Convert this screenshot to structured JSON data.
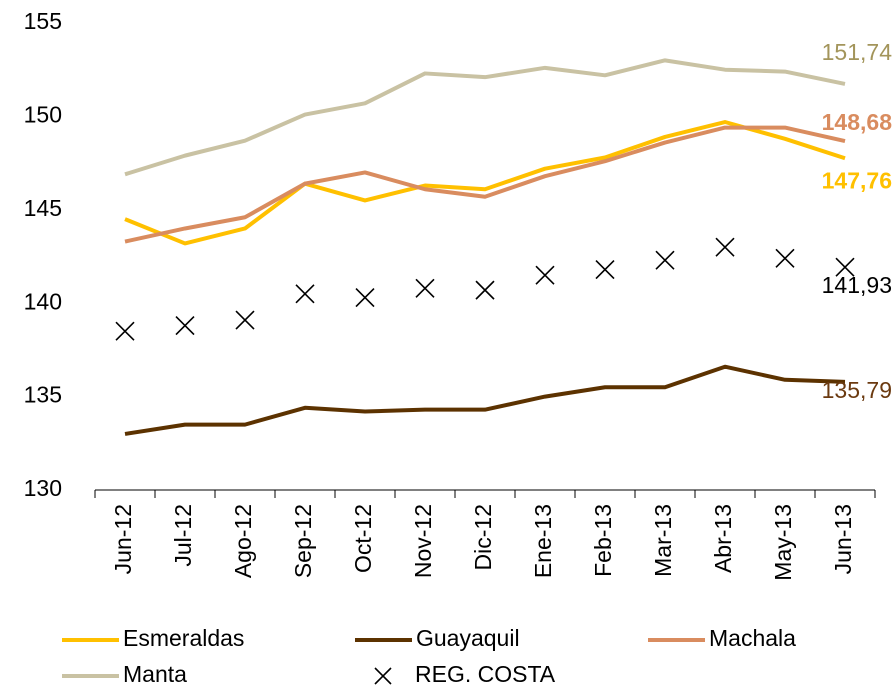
{
  "chart_data": {
    "type": "line",
    "categories": [
      "Jun-12",
      "Jul-12",
      "Ago-12",
      "Sep-12",
      "Oct-12",
      "Nov-12",
      "Dic-12",
      "Ene-13",
      "Feb-13",
      "Mar-13",
      "Abr-13",
      "May-13",
      "Jun-13"
    ],
    "series": [
      {
        "name": "Esmeraldas",
        "color": "#ffc000",
        "label_color": "#ffc000",
        "label_bold": true,
        "values": [
          144.5,
          143.2,
          144.0,
          146.4,
          145.5,
          146.3,
          146.1,
          147.2,
          147.8,
          148.9,
          149.7,
          148.8,
          147.76
        ],
        "value_labels": [
          null,
          null,
          null,
          null,
          null,
          null,
          null,
          null,
          null,
          null,
          null,
          null,
          "147,76"
        ]
      },
      {
        "name": "Guayaquil",
        "color": "#5c3200",
        "label_color": "#6b3a10",
        "label_bold": false,
        "values": [
          133.0,
          133.5,
          133.5,
          134.4,
          134.2,
          134.3,
          134.3,
          135.0,
          135.5,
          135.5,
          136.6,
          135.9,
          135.79
        ],
        "value_labels": [
          null,
          null,
          null,
          null,
          null,
          null,
          null,
          null,
          null,
          null,
          null,
          null,
          "135,79"
        ]
      },
      {
        "name": "Machala",
        "color": "#d98c5f",
        "label_color": "#d98c5f",
        "label_bold": true,
        "values": [
          143.3,
          144.0,
          144.6,
          146.4,
          147.0,
          146.1,
          145.7,
          146.8,
          147.6,
          148.6,
          149.4,
          149.4,
          148.68
        ],
        "value_labels": [
          null,
          null,
          null,
          null,
          null,
          null,
          null,
          null,
          null,
          null,
          null,
          null,
          "148,68"
        ]
      },
      {
        "name": "Manta",
        "color": "#c9c2a3",
        "label_color": "#a3955b",
        "label_bold": false,
        "values": [
          146.9,
          147.9,
          148.7,
          150.1,
          150.7,
          152.3,
          152.1,
          152.6,
          152.2,
          153.0,
          152.5,
          152.4,
          151.74
        ],
        "value_labels": [
          null,
          null,
          null,
          null,
          null,
          null,
          null,
          null,
          null,
          null,
          null,
          null,
          "151,74"
        ]
      },
      {
        "name": "REG. COSTA",
        "color": "#000000",
        "label_color": "#000000",
        "label_bold": false,
        "marker": "x",
        "values": [
          138.5,
          138.8,
          139.1,
          140.5,
          140.3,
          140.8,
          140.7,
          141.5,
          141.8,
          142.3,
          143.0,
          142.4,
          141.93
        ],
        "value_labels": [
          null,
          null,
          null,
          null,
          null,
          null,
          null,
          null,
          null,
          null,
          null,
          null,
          "141,93"
        ]
      }
    ],
    "ylim": [
      130,
      155
    ],
    "yticks": [
      130,
      135,
      140,
      145,
      150,
      155
    ],
    "grid": false
  }
}
